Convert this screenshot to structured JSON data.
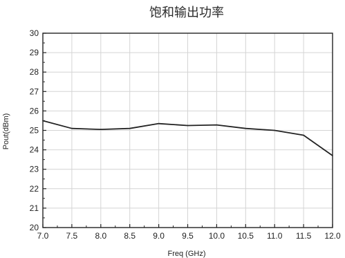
{
  "chart_data": {
    "type": "line",
    "title": "饱和输出功率",
    "xlabel": "Freq (GHz)",
    "ylabel": "Pout(dBm)",
    "xlim": [
      7.0,
      12.0
    ],
    "ylim": [
      20,
      30
    ],
    "xticks": [
      "7.0",
      "7.5",
      "8.0",
      "8.5",
      "9.0",
      "9.5",
      "10.0",
      "10.5",
      "11.0",
      "11.5",
      "12.0"
    ],
    "yticks": [
      "20",
      "21",
      "22",
      "23",
      "24",
      "25",
      "26",
      "27",
      "28",
      "29",
      "30"
    ],
    "grid": true,
    "legend": false,
    "series": [
      {
        "color": "#222222",
        "x": [
          7.0,
          7.5,
          8.0,
          8.5,
          9.0,
          9.5,
          10.0,
          10.5,
          11.0,
          11.5,
          12.0
        ],
        "y": [
          25.5,
          25.1,
          25.05,
          25.1,
          25.35,
          25.25,
          25.28,
          25.1,
          25.0,
          24.75,
          23.7
        ]
      }
    ]
  }
}
